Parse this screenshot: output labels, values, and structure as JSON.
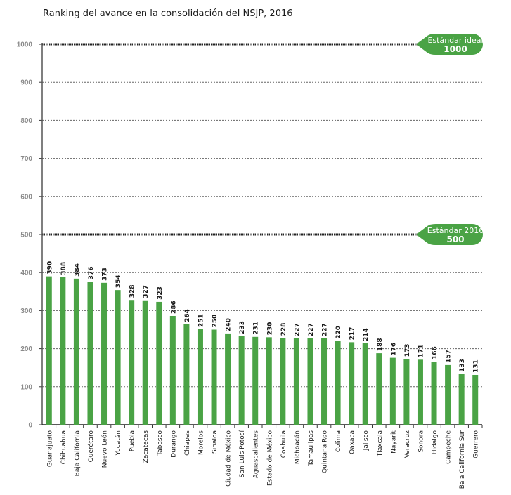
{
  "chart_data": {
    "type": "bar",
    "title": "Ranking del avance en la consolidación del NSJP, 2016",
    "xlabel": "",
    "ylabel": "",
    "ylim": [
      0,
      1000
    ],
    "yticks": [
      0,
      100,
      200,
      300,
      400,
      500,
      600,
      700,
      800,
      900,
      1000
    ],
    "grid": true,
    "bar_color": "#4aa345",
    "categories": [
      "Guanajuato",
      "Chihuahua",
      "Baja California",
      "Querétaro",
      "Nuevo León",
      "Yucatán",
      "Puebla",
      "Zacatecas",
      "Tabasco",
      "Durango",
      "Chiapas",
      "Morelos",
      "Sinaloa",
      "Ciudad de México",
      "San Luis Potosí",
      "Aguascalientes",
      "Estado de México",
      "Coahuila",
      "Michoacán",
      "Tamaulipas",
      "Quintana Roo",
      "Colima",
      "Oaxaca",
      "Jalisco",
      "Tlaxcala",
      "Nayarit",
      "Veracruz",
      "Sonora",
      "Hidalgo",
      "Campeche",
      "Baja California Sur",
      "Guerrero"
    ],
    "values": [
      390,
      388,
      384,
      376,
      373,
      354,
      328,
      327,
      323,
      286,
      264,
      251,
      250,
      240,
      233,
      231,
      230,
      228,
      227,
      227,
      227,
      220,
      217,
      214,
      188,
      176,
      173,
      171,
      166,
      157,
      133,
      131
    ],
    "annotations": [
      {
        "label": "Estándar ideal",
        "value": 1000,
        "color": "#4aa345"
      },
      {
        "label": "Estándar 2016",
        "value": 500,
        "color": "#4aa345"
      }
    ]
  }
}
